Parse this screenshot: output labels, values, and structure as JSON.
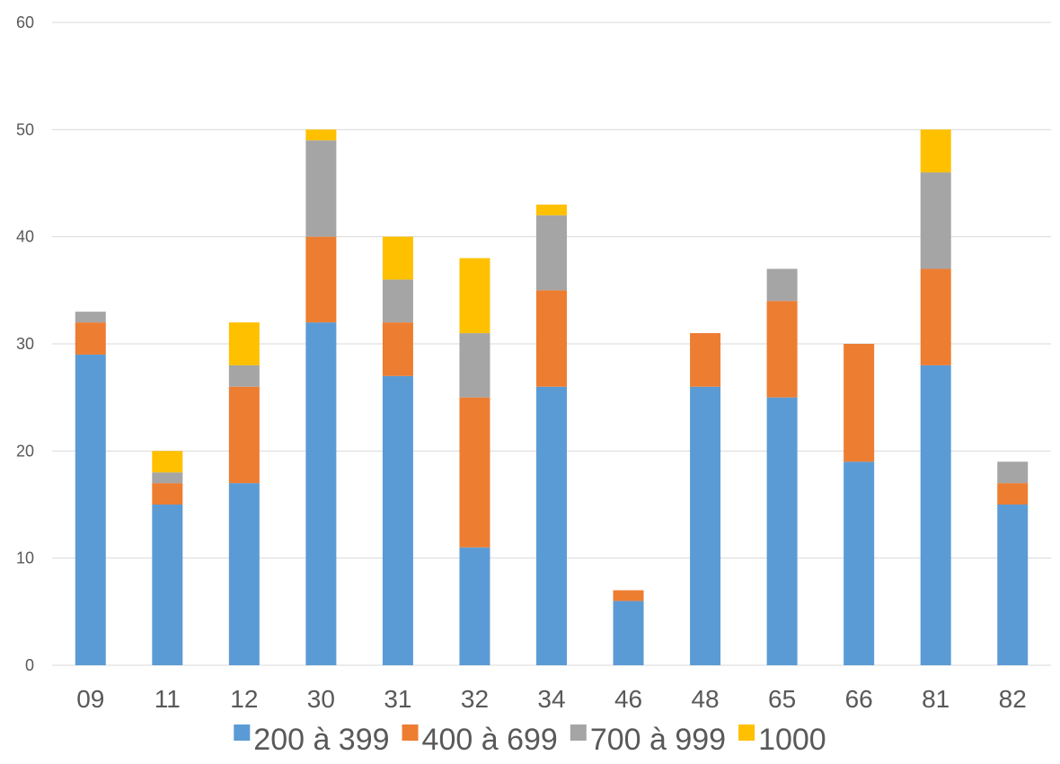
{
  "chart_data": {
    "type": "bar",
    "stacked": true,
    "categories": [
      "09",
      "11",
      "12",
      "30",
      "31",
      "32",
      "34",
      "46",
      "48",
      "65",
      "66",
      "81",
      "82"
    ],
    "series": [
      {
        "name": "200 à 399",
        "color": "#5b9bd5",
        "values": [
          29,
          15,
          17,
          32,
          27,
          11,
          26,
          6,
          26,
          25,
          19,
          28,
          15
        ]
      },
      {
        "name": "400 à 699",
        "color": "#ed7d31",
        "values": [
          3,
          2,
          9,
          8,
          5,
          14,
          9,
          1,
          5,
          9,
          11,
          9,
          2
        ]
      },
      {
        "name": "700 à 999",
        "color": "#a5a5a5",
        "values": [
          1,
          1,
          2,
          9,
          4,
          6,
          7,
          0,
          0,
          3,
          0,
          9,
          2
        ]
      },
      {
        "name": "1000",
        "color": "#ffc000",
        "values": [
          0,
          2,
          4,
          1,
          4,
          7,
          1,
          0,
          0,
          0,
          0,
          4,
          0
        ]
      }
    ],
    "y_ticks": [
      "0",
      "10",
      "20",
      "30",
      "40",
      "50",
      "60"
    ],
    "ylim": [
      0,
      60
    ],
    "grid": true,
    "gridline_color": "#d9d9d9",
    "legend_position": "bottom",
    "title": "",
    "xlabel": "",
    "ylabel": ""
  }
}
